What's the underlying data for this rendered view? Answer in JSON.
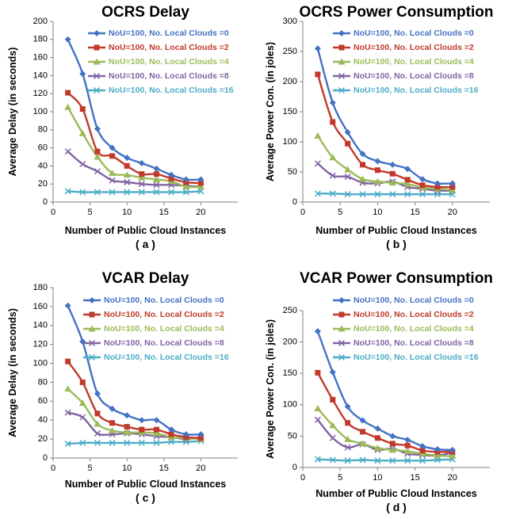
{
  "chart_data": [
    {
      "type": "line",
      "title": "OCRS Delay",
      "xlabel": "Number of Public Cloud Instances",
      "ylabel": "Average Delay (in seconds)",
      "sublabel": "( a )",
      "xlim": [
        0,
        25
      ],
      "ylim": [
        0,
        200
      ],
      "xticks": [
        0,
        5,
        10,
        15,
        20
      ],
      "yticks": [
        0,
        20,
        40,
        60,
        80,
        100,
        120,
        140,
        160,
        180,
        200
      ],
      "x": [
        2,
        4,
        6,
        8,
        10,
        12,
        14,
        16,
        18,
        20
      ],
      "legend_position": "top-right",
      "series": [
        {
          "name": "NoU=100, No. Local Clouds =0",
          "color": "#4472C4",
          "marker": "diamond",
          "values": [
            180,
            142,
            81,
            60,
            49,
            43,
            37,
            30,
            25,
            25
          ]
        },
        {
          "name": "NoU=100, No. Local Clouds =2",
          "color": "#C0392B",
          "marker": "square",
          "values": [
            121,
            103,
            56,
            51,
            40,
            31,
            31,
            26,
            22,
            21
          ]
        },
        {
          "name": "NoU=100, No. Local Clouds =4",
          "color": "#9BBB59",
          "marker": "triangle",
          "values": [
            105,
            76,
            50,
            32,
            30,
            27,
            25,
            23,
            17,
            17
          ]
        },
        {
          "name": "NoU=100, No. Local Clouds =8",
          "color": "#8064A2",
          "marker": "x",
          "values": [
            56,
            42,
            34,
            24,
            22,
            20,
            19,
            19,
            18,
            17
          ]
        },
        {
          "name": "NoU=100, No. Local Clouds =16",
          "color": "#4BACC6",
          "marker": "x",
          "values": [
            12,
            11,
            11,
            11,
            11,
            11,
            11,
            11,
            11,
            12
          ]
        }
      ]
    },
    {
      "type": "line",
      "title": "OCRS Power Consumption",
      "xlabel": "Number of Public Cloud Instances",
      "ylabel": "Average Power Con. (in joles)",
      "sublabel": "( b )",
      "xlim": [
        0,
        25
      ],
      "ylim": [
        0,
        300
      ],
      "xticks": [
        0,
        5,
        10,
        15,
        20
      ],
      "yticks": [
        0,
        50,
        100,
        150,
        200,
        250,
        300
      ],
      "x": [
        2,
        4,
        6,
        8,
        10,
        12,
        14,
        16,
        18,
        20
      ],
      "legend_position": "top-right",
      "series": [
        {
          "name": "NoU=100, No. Local Clouds =0",
          "color": "#4472C4",
          "marker": "diamond",
          "values": [
            255,
            165,
            116,
            80,
            68,
            62,
            55,
            38,
            31,
            31
          ]
        },
        {
          "name": "NoU=100, No. Local Clouds =2",
          "color": "#C0392B",
          "marker": "square",
          "values": [
            212,
            133,
            97,
            62,
            53,
            47,
            37,
            28,
            25,
            25
          ]
        },
        {
          "name": "NoU=100, No. Local Clouds =4",
          "color": "#9BBB59",
          "marker": "triangle",
          "values": [
            110,
            74,
            54,
            38,
            34,
            32,
            30,
            24,
            22,
            20
          ]
        },
        {
          "name": "NoU=100, No. Local Clouds =8",
          "color": "#8064A2",
          "marker": "x",
          "values": [
            64,
            44,
            42,
            32,
            31,
            34,
            25,
            22,
            19,
            19
          ]
        },
        {
          "name": "NoU=100, No. Local Clouds =16",
          "color": "#4BACC6",
          "marker": "x",
          "values": [
            14,
            14,
            13,
            13,
            13,
            13,
            13,
            13,
            13,
            13
          ]
        }
      ]
    },
    {
      "type": "line",
      "title": "VCAR Delay",
      "xlabel": "Number of Public Cloud Instances",
      "ylabel": "Average Delay (in seconds)",
      "sublabel": "( c )",
      "xlim": [
        0,
        25
      ],
      "ylim": [
        0,
        180
      ],
      "xticks": [
        0,
        5,
        10,
        15,
        20
      ],
      "yticks": [
        0,
        20,
        40,
        60,
        80,
        100,
        120,
        140,
        160,
        180
      ],
      "x": [
        2,
        4,
        6,
        8,
        10,
        12,
        14,
        16,
        18,
        20
      ],
      "legend_position": "top-right",
      "series": [
        {
          "name": "NoU=100, No. Local Clouds =0",
          "color": "#4472C4",
          "marker": "diamond",
          "values": [
            161,
            123,
            68,
            52,
            45,
            40,
            40,
            30,
            25,
            25
          ]
        },
        {
          "name": "NoU=100, No. Local Clouds =2",
          "color": "#C0392B",
          "marker": "square",
          "values": [
            102,
            80,
            47,
            37,
            33,
            30,
            30,
            25,
            22,
            21
          ]
        },
        {
          "name": "NoU=100, No. Local Clouds =4",
          "color": "#9BBB59",
          "marker": "triangle",
          "values": [
            73,
            58,
            36,
            29,
            27,
            27,
            26,
            22,
            21,
            20
          ]
        },
        {
          "name": "NoU=100, No. Local Clouds =8",
          "color": "#8064A2",
          "marker": "x",
          "values": [
            48,
            43,
            26,
            25,
            26,
            25,
            23,
            22,
            20,
            22
          ]
        },
        {
          "name": "NoU=100, No. Local Clouds =16",
          "color": "#4BACC6",
          "marker": "x",
          "values": [
            15,
            16,
            16,
            16,
            16,
            16,
            16,
            17,
            17,
            18
          ]
        }
      ]
    },
    {
      "type": "line",
      "title": "VCAR Power Consumption",
      "xlabel": "Number of Public Cloud Instances",
      "ylabel": "Average Power Con. (in joles)",
      "sublabel": "( d )",
      "xlim": [
        0,
        25
      ],
      "ylim": [
        0,
        250
      ],
      "xticks": [
        0,
        5,
        10,
        15,
        20
      ],
      "yticks": [
        0,
        50,
        100,
        150,
        200,
        250
      ],
      "x": [
        2,
        4,
        6,
        8,
        10,
        12,
        14,
        16,
        18,
        20
      ],
      "legend_position": "top-right",
      "series": [
        {
          "name": "NoU=100, No. Local Clouds =0",
          "color": "#4472C4",
          "marker": "diamond",
          "values": [
            217,
            152,
            97,
            75,
            62,
            50,
            44,
            34,
            29,
            28
          ]
        },
        {
          "name": "NoU=100, No. Local Clouds =2",
          "color": "#C0392B",
          "marker": "square",
          "values": [
            151,
            108,
            71,
            57,
            47,
            38,
            35,
            27,
            25,
            25
          ]
        },
        {
          "name": "NoU=100, No. Local Clouds =4",
          "color": "#9BBB59",
          "marker": "triangle",
          "values": [
            94,
            67,
            45,
            38,
            31,
            28,
            26,
            22,
            19,
            18
          ]
        },
        {
          "name": "NoU=100, No. Local Clouds =8",
          "color": "#8064A2",
          "marker": "x",
          "values": [
            76,
            47,
            32,
            37,
            28,
            30,
            22,
            20,
            19,
            24
          ]
        },
        {
          "name": "NoU=100, No. Local Clouds =16",
          "color": "#4BACC6",
          "marker": "x",
          "values": [
            13,
            12,
            11,
            12,
            11,
            11,
            11,
            11,
            12,
            13
          ]
        }
      ]
    }
  ]
}
